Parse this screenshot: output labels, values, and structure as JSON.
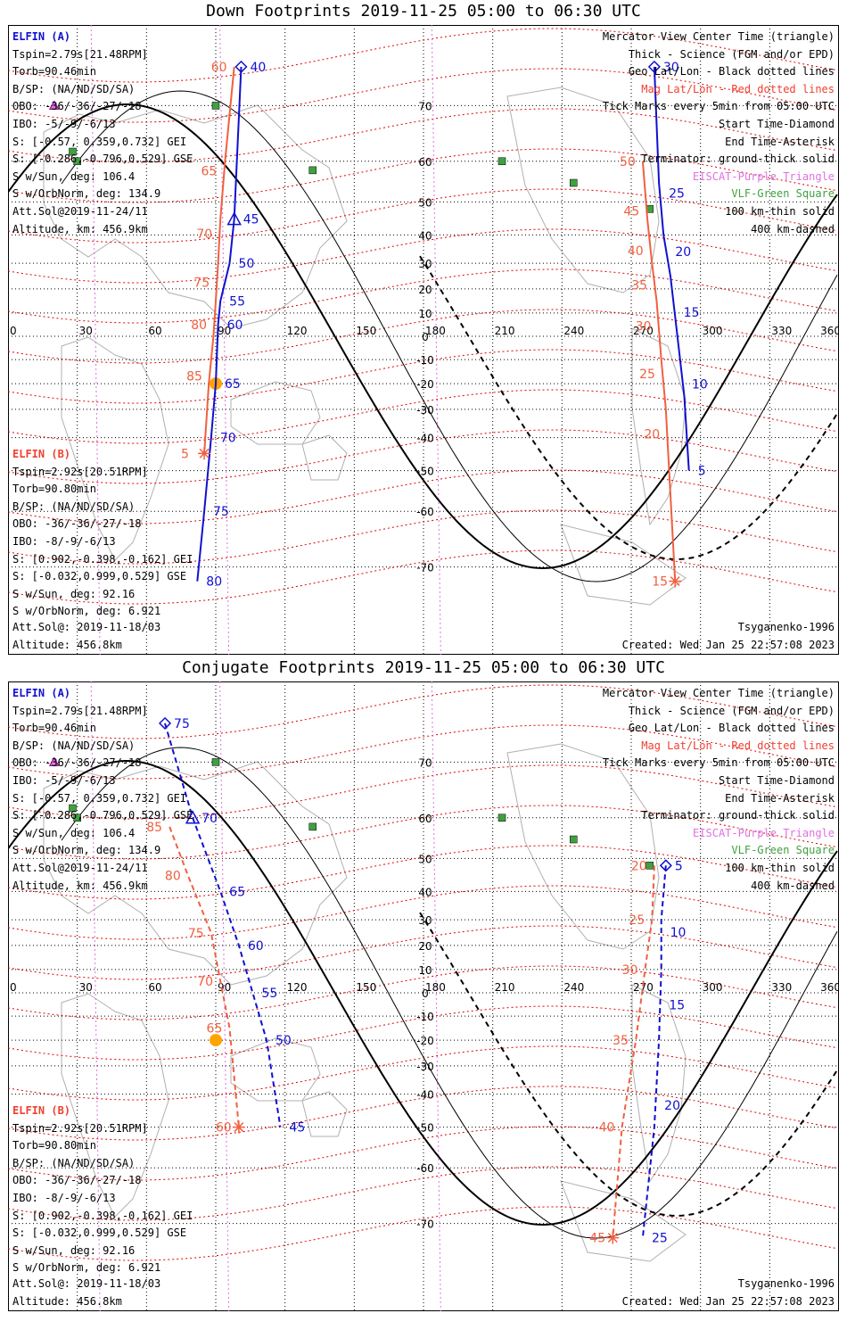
{
  "panels": [
    {
      "id": "down",
      "title": "Down Footprints 2019-11-25 05:00 to 06:30 UTC",
      "orbit_labels": {
        "a_blue": [
          "40",
          "45",
          "50",
          "55",
          "60",
          "65",
          "70",
          "75",
          "80"
        ],
        "b_red": [
          "60",
          "65",
          "70",
          "75",
          "80",
          "85",
          "5"
        ],
        "a_right": [
          "30",
          "25",
          "20",
          "15",
          "10",
          "5"
        ],
        "b_right": [
          "50",
          "45",
          "40",
          "35",
          "30",
          "25",
          "20",
          "15"
        ]
      }
    },
    {
      "id": "conjugate",
      "title": "Conjugate Footprints 2019-11-25 05:00 to 06:30 UTC",
      "orbit_labels": {
        "a_blue": [
          "75",
          "70",
          "65",
          "60",
          "55",
          "50",
          "45"
        ],
        "b_red": [
          "85",
          "80",
          "75",
          "70",
          "65",
          "60"
        ],
        "a_right": [
          "5",
          "10",
          "15",
          "20",
          "25"
        ],
        "b_right": [
          "20",
          "25",
          "30",
          "35",
          "40",
          "45"
        ]
      }
    }
  ],
  "elfin_a": {
    "name": "ELFIN (A)",
    "tspin": "Tspin=2.79s[21.48RPM]",
    "torb": "Torb=90.46min",
    "bsp": "B/SP: (NA/ND/SD/SA)",
    "obo": "OBO: -36/-36/-27/-18",
    "ibo": "IBO: -5/-9/-6/13",
    "s_gei": "S: [-0.57, 0.359,0.732] GEI",
    "s_gse": "S: [-0.286,-0.796,0.529] GSE",
    "s_sun": "S w/Sun, deg: 106.4",
    "s_orbnorm": "S w/OrbNorm, deg: 134.9",
    "att_sol": "Att.Sol@2019-11-24/11",
    "altitude": "Altitude, km: 456.9km"
  },
  "elfin_b": {
    "name": "ELFIN (B)",
    "tspin": "Tspin=2.92s[20.51RPM]",
    "torb": "Torb=90.80min",
    "bsp": "B/SP: (NA/ND/SD/SA)",
    "obo": "OBO: -36/-36/-27/-18",
    "ibo": "IBO: -8/-9/-6/13",
    "s_gei": "S: [0.902,-0.398,-0.162] GEI",
    "s_gse": "S: [-0.032,0.999,0.529] GSE",
    "s_sun": "S w/Sun, deg: 92.16",
    "s_orbnorm": "S w/OrbNorm, deg: 6.921",
    "att_sol": "Att.Sol@: 2019-11-18/03",
    "altitude": "Altitude: 456.8km"
  },
  "legend": {
    "l1": "Mercator View Center Time (triangle)",
    "l2": "Thick - Science (FGM and/or EPD)",
    "l3": "Geo Lat/Lon - Black dotted lines",
    "l4": "Mag Lat/Lon - Red dotted lines",
    "l5": "Tick Marks every 5min from 05:00 UTC",
    "l6": "Start Time-Diamond",
    "l7": "End Time-Asterisk",
    "l8": "Terminator: ground-thick solid",
    "l9": "EISCAT-Purple Triangle",
    "l10": "VLF-Green Square",
    "l11": "100 km-thin solid",
    "l12": "400 km-dashed"
  },
  "footer": {
    "model": "Tsyganenko-1996",
    "created": "Created: Wed Jan 25 22:57:08 2023"
  },
  "colors": {
    "elfin_a": "#1010d0",
    "elfin_b": "#f06040",
    "mag_grid": "#e00000",
    "eiscat": "#e070e0",
    "vlf": "#40a040",
    "sun": "#ffa500"
  },
  "chart_data": [
    {
      "type": "scatter",
      "title": "Down Footprints 2019-11-25 05:00 to 06:30 UTC",
      "projection": "Mercator",
      "xlim": [
        0,
        360
      ],
      "ylim": [
        -75,
        75
      ],
      "xticks": [
        "0",
        "30",
        "60",
        "90",
        "120",
        "150",
        "180",
        "210",
        "240",
        "270",
        "300",
        "330",
        "360"
      ],
      "yticks": [
        "70",
        "60",
        "50",
        "40",
        "30",
        "20",
        "10",
        "0",
        "-10",
        "-20",
        "-30",
        "-40",
        "-50",
        "-60",
        "-70"
      ],
      "grid": true,
      "series": [
        {
          "name": "ELFIN (A)",
          "points_lon_lat": [
            [
              101,
              75
            ],
            [
              98,
              45
            ],
            [
              96,
              30
            ],
            [
              92,
              15
            ],
            [
              91,
              5
            ],
            [
              90,
              -20
            ],
            [
              88,
              -40
            ],
            [
              85,
              -60
            ],
            [
              82,
              -72
            ]
          ]
        },
        {
          "name": "ELFIN (B)",
          "points_lon_lat": [
            [
              98,
              75
            ],
            [
              94,
              60
            ],
            [
              92,
              45
            ],
            [
              91,
              30
            ],
            [
              90,
              15
            ],
            [
              89,
              0
            ],
            [
              87,
              -20
            ],
            [
              85,
              -45
            ]
          ]
        },
        {
          "name": "ELFIN (A)",
          "points_lon_lat": [
            [
              280,
              75
            ],
            [
              282,
              55
            ],
            [
              284,
              40
            ],
            [
              287,
              25
            ],
            [
              290,
              0
            ],
            [
              293,
              -25
            ],
            [
              295,
              -50
            ]
          ]
        },
        {
          "name": "ELFIN (B)",
          "points_lon_lat": [
            [
              275,
              60
            ],
            [
              277,
              45
            ],
            [
              279,
              30
            ],
            [
              281,
              15
            ],
            [
              283,
              -10
            ],
            [
              285,
              -30
            ],
            [
              289,
              -72
            ]
          ]
        }
      ]
    },
    {
      "type": "scatter",
      "title": "Conjugate Footprints 2019-11-25 05:00 to 06:30 UTC",
      "projection": "Mercator",
      "xlim": [
        0,
        360
      ],
      "ylim": [
        -75,
        75
      ],
      "xticks": [
        "0",
        "30",
        "60",
        "90",
        "120",
        "150",
        "180",
        "210",
        "240",
        "270",
        "300",
        "330",
        "360"
      ],
      "yticks": [
        "70",
        "60",
        "50",
        "40",
        "30",
        "20",
        "10",
        "0",
        "-10",
        "-20",
        "-30",
        "-40",
        "-50",
        "-60",
        "-70"
      ],
      "grid": true,
      "series": [
        {
          "name": "ELFIN (A)",
          "points_lon_lat": [
            [
              68,
              75
            ],
            [
              80,
              60
            ],
            [
              92,
              40
            ],
            [
              100,
              20
            ],
            [
              106,
              0
            ],
            [
              112,
              -20
            ],
            [
              118,
              -50
            ]
          ]
        },
        {
          "name": "ELFIN (B)",
          "points_lon_lat": [
            [
              70,
              58
            ],
            [
              78,
              45
            ],
            [
              88,
              25
            ],
            [
              92,
              5
            ],
            [
              96,
              -15
            ],
            [
              100,
              -50
            ]
          ]
        },
        {
          "name": "ELFIN (A)",
          "points_lon_lat": [
            [
              285,
              48
            ],
            [
              283,
              30
            ],
            [
              283,
              10
            ],
            [
              282,
              -20
            ],
            [
              280,
              -50
            ],
            [
              275,
              -72
            ]
          ]
        },
        {
          "name": "ELFIN (B)",
          "points_lon_lat": [
            [
              280,
              48
            ],
            [
              279,
              30
            ],
            [
              276,
              10
            ],
            [
              272,
              -20
            ],
            [
              266,
              -50
            ],
            [
              262,
              -72
            ]
          ]
        }
      ]
    }
  ]
}
